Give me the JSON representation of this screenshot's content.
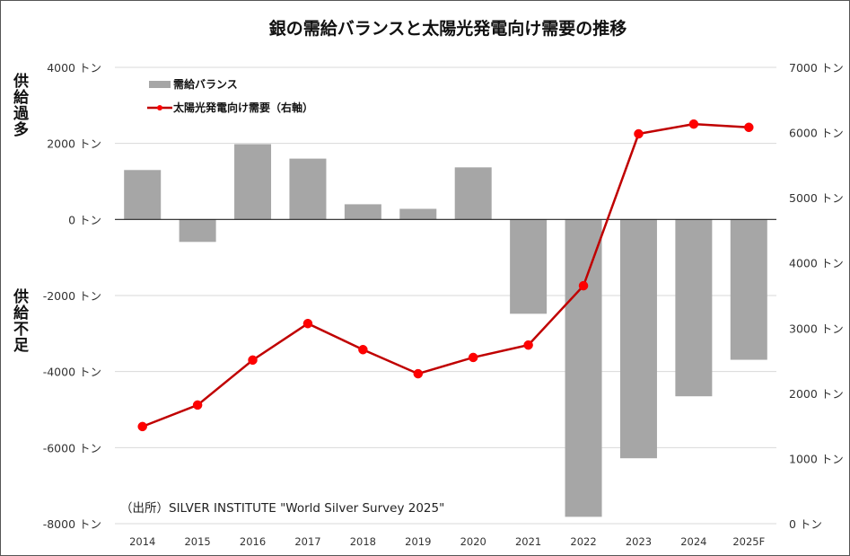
{
  "chart_data": {
    "type": "bar+line",
    "title": "銀の需給バランスと太陽光発電向け需要の推移",
    "categories": [
      "2014",
      "2015",
      "2016",
      "2017",
      "2018",
      "2019",
      "2020",
      "2021",
      "2022",
      "2023",
      "2024",
      "2025F"
    ],
    "series": [
      {
        "name": "需給バランス",
        "type": "bar",
        "axis": "left",
        "color": "#a6a6a6",
        "values": [
          1300,
          -590,
          1980,
          1600,
          400,
          280,
          1370,
          -2480,
          -7820,
          -6280,
          -4650,
          -3690
        ]
      },
      {
        "name": "太陽光発電向け需要（右軸）",
        "type": "line",
        "axis": "right",
        "color": "#c00000",
        "marker_color": "#ff0000",
        "values": [
          1490,
          1820,
          2510,
          3070,
          2670,
          2300,
          2550,
          2740,
          3650,
          5980,
          6130,
          6080
        ]
      }
    ],
    "left_axis": {
      "ylim": [
        -8000,
        4000
      ],
      "ticks": [
        4000,
        2000,
        0,
        -2000,
        -4000,
        -6000,
        -8000
      ],
      "unit": "トン"
    },
    "right_axis": {
      "ylim": [
        0,
        7000
      ],
      "ticks": [
        7000,
        6000,
        5000,
        4000,
        3000,
        2000,
        1000,
        0
      ],
      "unit": "トン"
    },
    "side_labels": {
      "top": "供給過多",
      "bottom": "供給不足"
    },
    "source": "（出所）SILVER INSTITUTE \"World Silver Survey 2025\"",
    "grid": true,
    "legend_position": "top-left"
  }
}
